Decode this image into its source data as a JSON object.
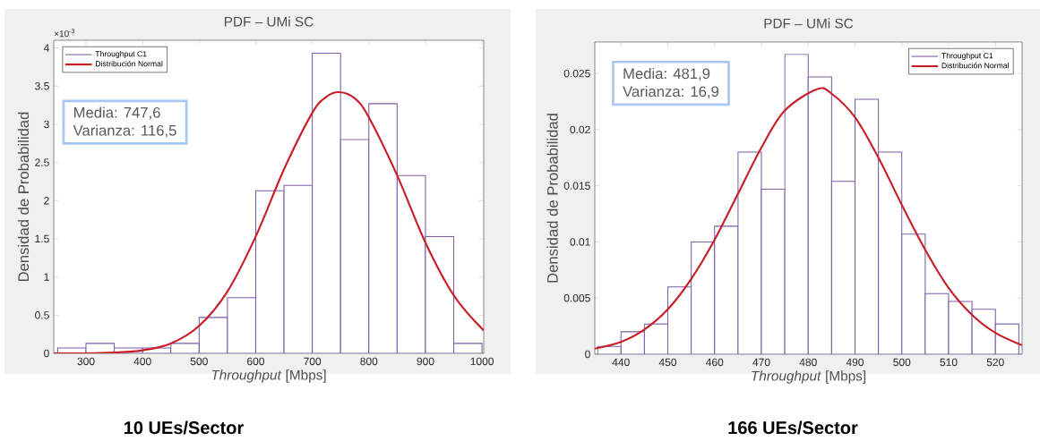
{
  "chart_data": [
    {
      "type": "histogram",
      "title": "PDF – UMi SC",
      "xlabel": "*Throughput* [Mbps]",
      "ylabel": "Densidad de Probabilidad",
      "bins": [
        250,
        300,
        350,
        400,
        450,
        500,
        550,
        600,
        650,
        700,
        750,
        800,
        850,
        900,
        950,
        1000
      ],
      "series": [
        {
          "name": "Throughput C1",
          "color": "#7b5ea7",
          "values": [
            0.07,
            0.13,
            0.07,
            0.07,
            0.13,
            0.47,
            0.73,
            2.13,
            2.2,
            3.93,
            2.8,
            3.27,
            2.33,
            1.53,
            0.13
          ]
        },
        {
          "name": "Distribución Normal",
          "type": "line",
          "color": "#c81e28",
          "x": [
            243,
            300,
            350,
            400,
            450,
            500,
            550,
            600,
            650,
            700,
            725,
            747.6,
            775,
            800,
            850,
            900,
            950,
            1003
          ],
          "values": [
            0,
            0,
            0.01,
            0.04,
            0.13,
            0.36,
            0.81,
            1.53,
            2.41,
            3.15,
            3.36,
            3.42,
            3.34,
            3.09,
            2.33,
            1.45,
            0.76,
            0.3
          ]
        }
      ],
      "xlim": [
        243,
        1003
      ],
      "ylim": [
        0,
        4.1
      ],
      "xticks": [
        300,
        400,
        500,
        600,
        700,
        800,
        900,
        1000
      ],
      "yticks": [
        0,
        0.5,
        1,
        1.5,
        2,
        2.5,
        3,
        3.5,
        4
      ],
      "annotations": [
        "×10$^{-3}$",
        "Media: 747,6",
        "Varianza: 116,5",
        "10 UEs/Sector"
      ],
      "legend": "top left",
      "grid": false
    },
    {
      "type": "histogram",
      "title": "PDF – UMi SC",
      "xlabel": "*Throughput* [Mbps]",
      "ylabel": "Densidad de Probabilidad",
      "bins": [
        435,
        440,
        445,
        450,
        455,
        460,
        465,
        470,
        475,
        480,
        485,
        490,
        495,
        500,
        505,
        510,
        515,
        520,
        525
      ],
      "series": [
        {
          "name": "Throughput C1",
          "color": "#7b5ea7",
          "values": [
            0.0007,
            0.002,
            0.0027,
            0.006,
            0.01,
            0.0114,
            0.018,
            0.0147,
            0.0267,
            0.0247,
            0.0154,
            0.0227,
            0.018,
            0.0107,
            0.0054,
            0.0047,
            0.004,
            0.0027
          ]
        },
        {
          "name": "Distribución Normal",
          "type": "line",
          "color": "#c81e28",
          "x": [
            434.4,
            440,
            445,
            450,
            455,
            460,
            465,
            470,
            475,
            481.9,
            485,
            490,
            495,
            500,
            505,
            510,
            515,
            520,
            525.7
          ],
          "values": [
            0.0005,
            0.0011,
            0.0022,
            0.004,
            0.0067,
            0.0102,
            0.0143,
            0.0184,
            0.0217,
            0.0236,
            0.0232,
            0.0211,
            0.0175,
            0.0133,
            0.0093,
            0.0059,
            0.0035,
            0.0019,
            0.0008
          ]
        }
      ],
      "xlim": [
        434.4,
        525.7
      ],
      "ylim": [
        0,
        0.0278
      ],
      "xticks": [
        440,
        450,
        460,
        470,
        480,
        490,
        500,
        510,
        520
      ],
      "yticks": [
        0,
        0.005,
        0.01,
        0.015,
        0.02,
        0.025
      ],
      "annotations": [
        "Media: 481,9",
        "Varianza: 16,9",
        "166 UEs/Sector"
      ],
      "legend": "top right",
      "grid": false
    }
  ]
}
